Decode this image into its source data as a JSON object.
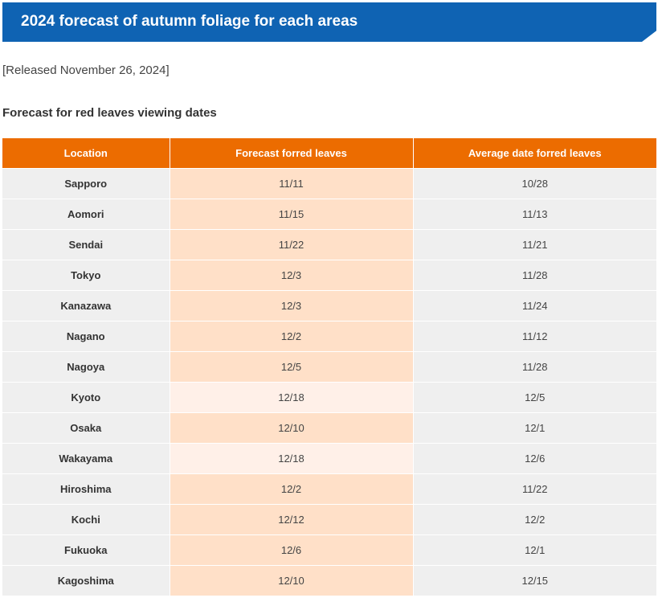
{
  "header": {
    "title": "2024 forecast of autumn foliage for each areas",
    "accent_color": "#0f63b3"
  },
  "released": "[Released November 26, 2024]",
  "section": {
    "heading": "Forecast for red leaves viewing dates"
  },
  "table": {
    "header_color": "#ec6c00",
    "columns": [
      "Location",
      "Forecast forred leaves",
      "Average date forred leaves"
    ],
    "rows": [
      {
        "location": "Sapporo",
        "forecast": "11/11",
        "average": "10/28"
      },
      {
        "location": "Aomori",
        "forecast": "11/15",
        "average": "11/13"
      },
      {
        "location": "Sendai",
        "forecast": "11/22",
        "average": "11/21"
      },
      {
        "location": "Tokyo",
        "forecast": "12/3",
        "average": "11/28"
      },
      {
        "location": "Kanazawa",
        "forecast": "12/3",
        "average": "11/24"
      },
      {
        "location": "Nagano",
        "forecast": "12/2",
        "average": "11/12"
      },
      {
        "location": "Nagoya",
        "forecast": "12/5",
        "average": "11/28"
      },
      {
        "location": "Kyoto",
        "forecast": "12/18",
        "average": "12/5"
      },
      {
        "location": "Osaka",
        "forecast": "12/10",
        "average": "12/1"
      },
      {
        "location": "Wakayama",
        "forecast": "12/18",
        "average": "12/6"
      },
      {
        "location": "Hiroshima",
        "forecast": "12/2",
        "average": "11/22"
      },
      {
        "location": "Kochi",
        "forecast": "12/12",
        "average": "12/2"
      },
      {
        "location": "Fukuoka",
        "forecast": "12/6",
        "average": "12/1"
      },
      {
        "location": "Kagoshima",
        "forecast": "12/10",
        "average": "12/15"
      }
    ]
  }
}
